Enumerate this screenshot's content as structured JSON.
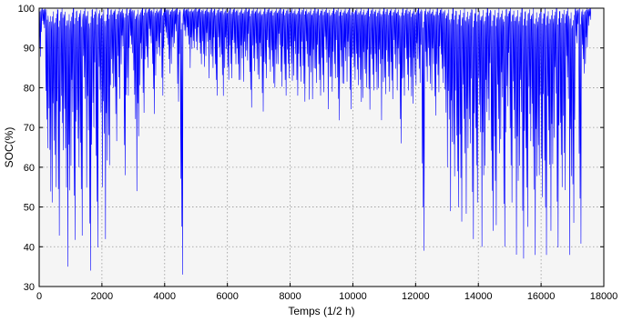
{
  "chart_data": {
    "type": "line",
    "title": "",
    "xlabel": "Temps (1/2 h)",
    "ylabel": "SOC(%)",
    "xlim": [
      0,
      18000
    ],
    "ylim": [
      30,
      100
    ],
    "x_ticks": [
      0,
      2000,
      4000,
      6000,
      8000,
      10000,
      12000,
      14000,
      16000,
      18000
    ],
    "y_ticks": [
      30,
      40,
      50,
      60,
      70,
      80,
      90,
      100
    ],
    "grid": true,
    "legend": "none",
    "colors": {
      "series": "#0000ff",
      "plot_background": "#f5f5f5",
      "grid": "#999999"
    },
    "series": [
      {
        "x": [
          0,
          100,
          200,
          300,
          400,
          500,
          600,
          700,
          800,
          900,
          1000,
          1100,
          1200,
          1300,
          1400,
          1500,
          1600,
          1700,
          1800,
          1900,
          2000,
          2100,
          2200,
          2300,
          2400,
          2500,
          2600,
          2700,
          2800,
          2900,
          3000,
          3100,
          3200,
          3300,
          3400,
          3500,
          3600,
          3700,
          3800,
          3900,
          4000,
          4100,
          4200,
          4300,
          4400,
          4500,
          4600,
          4700,
          4800,
          4900,
          5000,
          5100,
          5200,
          5300,
          5400,
          5500,
          5600,
          5700,
          5800,
          5900,
          6000,
          6100,
          6200,
          6300,
          6400,
          6500,
          6600,
          6700,
          6800,
          6900,
          7000,
          7100,
          7200,
          7300,
          7400,
          7500,
          7600,
          7700,
          7800,
          7900,
          8000,
          8100,
          8200,
          8300,
          8400,
          8500,
          8600,
          8700,
          8800,
          8900,
          9000,
          9100,
          9200,
          9300,
          9400,
          9500,
          9600,
          9700,
          9800,
          9900,
          10000,
          10100,
          10200,
          10300,
          10400,
          10500,
          10600,
          10700,
          10800,
          10900,
          11000,
          11100,
          11200,
          11300,
          11400,
          11500,
          11600,
          11700,
          11800,
          11900,
          12000,
          12100,
          12200,
          12300,
          12400,
          12500,
          12600,
          12700,
          12800,
          12900,
          13000,
          13100,
          13200,
          13300,
          13400,
          13500,
          13600,
          13700,
          13800,
          13900,
          14000,
          14100,
          14200,
          14300,
          14400,
          14500,
          14600,
          14700,
          14800,
          14900,
          15000,
          15100,
          15200,
          15300,
          15400,
          15500,
          15600,
          15700,
          15800,
          15900,
          16000,
          16100,
          16200,
          16300,
          16400,
          16500,
          16600,
          16700,
          16800,
          16900,
          17000,
          17100,
          17200,
          17300,
          17400,
          17500
        ],
        "min": [
          87,
          95,
          60,
          40,
          48,
          55,
          35,
          62,
          45,
          35,
          55,
          38,
          60,
          35,
          70,
          52,
          34,
          66,
          36,
          68,
          55,
          34,
          58,
          80,
          62,
          70,
          85,
          58,
          75,
          88,
          66,
          54,
          78,
          72,
          85,
          90,
          65,
          82,
          88,
          75,
          92,
          80,
          86,
          90,
          75,
          33,
          92,
          88,
          84,
          90,
          88,
          85,
          82,
          88,
          80,
          84,
          78,
          86,
          71,
          84,
          82,
          80,
          85,
          78,
          82,
          79,
          86,
          75,
          82,
          78,
          81,
          74,
          80,
          83,
          77,
          80,
          84,
          79,
          78,
          80,
          76,
          82,
          78,
          79,
          75,
          82,
          77,
          74,
          80,
          78,
          76,
          82,
          73,
          79,
          80,
          70,
          77,
          81,
          79,
          73,
          82,
          78,
          69,
          76,
          80,
          71,
          78,
          75,
          80,
          68,
          77,
          79,
          74,
          80,
          78,
          66,
          75,
          78,
          73,
          76,
          78,
          80,
          39,
          79,
          75,
          78,
          73,
          76,
          80,
          68,
          60,
          42,
          55,
          50,
          39,
          52,
          45,
          66,
          34,
          48,
          62,
          40,
          55,
          70,
          44,
          38,
          52,
          65,
          40,
          72,
          48,
          60,
          38,
          55,
          33,
          45,
          62,
          40,
          34,
          58,
          46,
          34,
          52,
          44,
          63,
          36,
          55,
          48,
          70,
          34,
          46,
          90,
          37,
          80,
          86,
          95
        ],
        "max": [
          100,
          100,
          100,
          98,
          100,
          100,
          100,
          100,
          100,
          99,
          100,
          100,
          100,
          100,
          100,
          100,
          100,
          100,
          100,
          100,
          100,
          100,
          100,
          100,
          100,
          100,
          100,
          100,
          100,
          100,
          100,
          100,
          100,
          100,
          100,
          100,
          100,
          100,
          100,
          100,
          100,
          100,
          100,
          100,
          100,
          100,
          100,
          100,
          100,
          100,
          100,
          100,
          100,
          100,
          100,
          100,
          100,
          100,
          100,
          100,
          100,
          100,
          100,
          100,
          100,
          100,
          100,
          100,
          100,
          100,
          100,
          100,
          100,
          100,
          100,
          100,
          100,
          100,
          100,
          100,
          100,
          100,
          100,
          100,
          100,
          100,
          100,
          100,
          100,
          100,
          100,
          100,
          100,
          100,
          100,
          100,
          100,
          100,
          100,
          100,
          100,
          100,
          100,
          100,
          100,
          100,
          100,
          100,
          100,
          100,
          100,
          100,
          100,
          100,
          100,
          100,
          100,
          100,
          100,
          100,
          100,
          100,
          100,
          100,
          100,
          100,
          100,
          100,
          100,
          100,
          100,
          100,
          100,
          100,
          100,
          100,
          100,
          100,
          100,
          100,
          100,
          100,
          100,
          100,
          100,
          100,
          100,
          100,
          100,
          100,
          100,
          100,
          100,
          100,
          100,
          100,
          100,
          100,
          100,
          100,
          100,
          100,
          100,
          100,
          100,
          100,
          100,
          100,
          100,
          100,
          100,
          100,
          100,
          100,
          100,
          100
        ]
      }
    ]
  }
}
